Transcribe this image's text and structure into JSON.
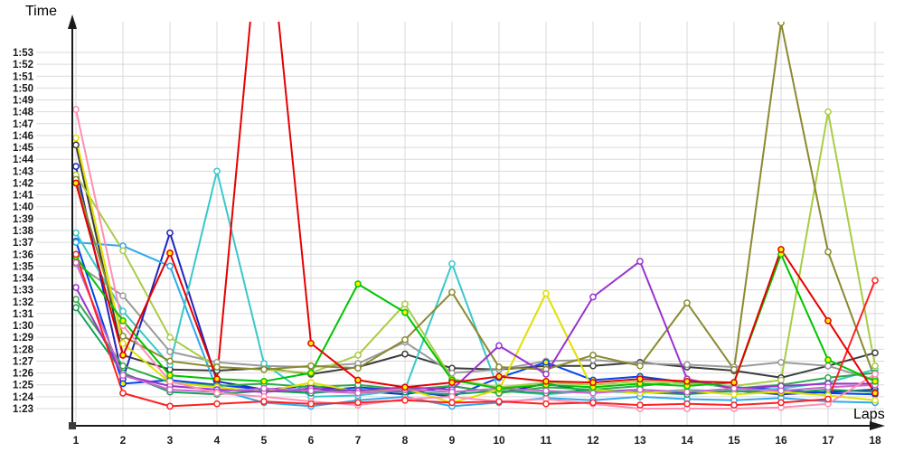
{
  "chart": {
    "y_axis_title": "Time",
    "x_axis_title": "Laps",
    "grid_color": "#d9d9d9",
    "axis_color": "#1a1a1a",
    "tick_label_color": "#1b1b1b"
  },
  "chart_data": {
    "type": "line",
    "title": "",
    "xlabel": "Laps",
    "ylabel": "Time",
    "x": [
      1,
      2,
      3,
      4,
      5,
      6,
      7,
      8,
      9,
      10,
      11,
      12,
      13,
      14,
      15,
      16,
      17,
      18
    ],
    "x_tick_labels": [
      "1",
      "2",
      "3",
      "4",
      "5",
      "6",
      "7",
      "8",
      "9",
      "10",
      "11",
      "12",
      "13",
      "14",
      "15",
      "16",
      "17",
      "18"
    ],
    "y_tick_labels": [
      "1:53",
      "1:52",
      "1:51",
      "1:50",
      "1:49",
      "1:48",
      "1:47",
      "1:46",
      "1:45",
      "1:44",
      "1:43",
      "1:42",
      "1:41",
      "1:40",
      "1:39",
      "1:38",
      "1:37",
      "1:36",
      "1:35",
      "1:34",
      "1:33",
      "1:32",
      "1:31",
      "1:30",
      "1:29",
      "1:28",
      "1:27",
      "1:26",
      "1:25",
      "1:24",
      "1:23"
    ],
    "y_axis_seconds_range": [
      83,
      113
    ],
    "grid": true,
    "legend_position": "none",
    "units": "minutes:seconds per lap, values stored as total seconds",
    "series": [
      {
        "name": "black",
        "color": "#3c3c3c",
        "marker_fill": "#ffffff",
        "values": [
          105.2,
          87.5,
          86.3,
          86.2,
          86.4,
          85.9,
          86.5,
          87.6,
          86.4,
          86.3,
          86.6,
          86.6,
          86.9,
          86.5,
          86.2,
          85.6,
          86.6,
          87.7
        ]
      },
      {
        "name": "gray",
        "color": "#9a9a9a",
        "marker_fill": "#ffffff",
        "values": [
          95.2,
          92.5,
          87.8,
          86.9,
          86.6,
          86.5,
          86.8,
          88.6,
          86.0,
          86.3,
          87.0,
          87.1,
          86.8,
          86.7,
          86.5,
          86.9,
          86.6,
          85.4
        ]
      },
      {
        "name": "navy-blue",
        "color": "#2222bb",
        "marker_fill": "#ffffff",
        "values": [
          103.4,
          85.5,
          97.8,
          85.3,
          84.6,
          84.9,
          84.5,
          84.2,
          84.9,
          84.3,
          85.1,
          84.4,
          84.6,
          84.3,
          84.5,
          84.2,
          84.4,
          84.6
        ]
      },
      {
        "name": "blue",
        "color": "#0044ee",
        "marker_fill": "#ffee00",
        "values": [
          97.1,
          85.1,
          85.4,
          85.0,
          84.6,
          84.4,
          84.8,
          84.5,
          84.0,
          85.6,
          86.9,
          85.4,
          85.7,
          85.2,
          84.8,
          84.6,
          84.3,
          84.2
        ]
      },
      {
        "name": "sky-blue",
        "color": "#30a8f0",
        "marker_fill": "#ffffff",
        "values": [
          97.0,
          96.7,
          95.0,
          84.6,
          83.5,
          83.2,
          83.7,
          84.0,
          83.2,
          83.5,
          83.9,
          83.7,
          84.0,
          83.8,
          83.7,
          83.9,
          83.6,
          83.5
        ]
      },
      {
        "name": "cyan",
        "color": "#38c8c8",
        "marker_fill": "#ffffff",
        "values": [
          97.8,
          91.2,
          86.7,
          103.0,
          86.8,
          84.0,
          84.1,
          84.6,
          95.2,
          84.5,
          84.2,
          84.5,
          84.3,
          84.6,
          84.4,
          84.7,
          85.2,
          86.3
        ]
      },
      {
        "name": "sea-green",
        "color": "#18a05a",
        "marker_fill": "#ffffff",
        "values": [
          91.5,
          86.0,
          84.4,
          84.2,
          84.5,
          84.3,
          84.6,
          84.4,
          84.2,
          84.5,
          84.3,
          84.6,
          84.4,
          84.2,
          84.5,
          84.3,
          84.6,
          84.4
        ]
      },
      {
        "name": "medium-green",
        "color": "#2faa4a",
        "marker_fill": "#ffffff",
        "values": [
          92.2,
          86.6,
          85.2,
          84.9,
          85.1,
          84.8,
          85.0,
          84.6,
          84.9,
          84.3,
          84.8,
          84.6,
          84.9,
          85.3,
          84.7,
          85.0,
          85.6,
          86.0
        ]
      },
      {
        "name": "light-green",
        "color": "#a8cc44",
        "marker_fill": "#ffffff",
        "values": [
          102.7,
          96.3,
          89.0,
          86.5,
          86.3,
          86.0,
          87.5,
          91.8,
          85.5,
          84.8,
          85.2,
          85.0,
          85.3,
          85.1,
          84.9,
          85.4,
          108.0,
          86.6
        ]
      },
      {
        "name": "olive",
        "color": "#8a8a30",
        "marker_fill": "#ffffff",
        "values": [
          102.3,
          89.1,
          87.0,
          86.5,
          86.3,
          86.6,
          86.4,
          88.8,
          92.8,
          86.5,
          86.3,
          87.5,
          86.6,
          91.9,
          86.3,
          115.5,
          96.2,
          85.5
        ]
      },
      {
        "name": "yellow",
        "color": "#e0e000",
        "marker_fill": "#ffffff",
        "values": [
          105.8,
          88.5,
          85.2,
          84.8,
          84.4,
          85.2,
          84.4,
          84.7,
          83.5,
          84.6,
          92.7,
          84.6,
          84.3,
          84.5,
          84.2,
          84.4,
          84.1,
          83.7
        ]
      },
      {
        "name": "purple",
        "color": "#9933cc",
        "marker_fill": "#ffffff",
        "values": [
          93.2,
          85.8,
          84.9,
          84.6,
          84.4,
          84.7,
          84.5,
          84.8,
          84.6,
          88.3,
          85.9,
          92.4,
          95.4,
          85.5,
          84.7,
          84.9,
          85.1,
          85.1
        ]
      },
      {
        "name": "orchid",
        "color": "#cc66cc",
        "marker_fill": "#ffffff",
        "values": [
          95.3,
          85.8,
          84.6,
          84.4,
          84.7,
          84.5,
          84.3,
          84.6,
          84.4,
          84.7,
          84.5,
          84.3,
          84.6,
          84.4,
          84.7,
          84.5,
          84.8,
          85.0
        ]
      },
      {
        "name": "pink",
        "color": "#ff8fb4",
        "marker_fill": "#ffffff",
        "values": [
          108.2,
          90.0,
          85.3,
          84.3,
          84.0,
          83.6,
          83.3,
          83.8,
          84.0,
          83.6,
          83.8,
          83.4,
          83.0,
          83.0,
          83.0,
          83.1,
          83.4,
          85.9
        ]
      },
      {
        "name": "bright-green",
        "color": "#00c400",
        "marker_fill": "#ffee00",
        "values": [
          95.8,
          90.4,
          85.8,
          85.5,
          85.3,
          86.0,
          93.5,
          91.1,
          85.4,
          84.7,
          85.0,
          84.8,
          85.1,
          84.9,
          85.2,
          96.0,
          87.1,
          85.3
        ]
      },
      {
        "name": "scarlet",
        "color": "#ff2020",
        "marker_fill": "#ffffff",
        "values": [
          96.0,
          84.3,
          83.2,
          83.4,
          83.6,
          83.4,
          83.5,
          83.7,
          83.5,
          83.6,
          83.4,
          83.5,
          83.3,
          83.4,
          83.3,
          83.5,
          83.8,
          93.8
        ]
      },
      {
        "name": "red",
        "color": "#e60000",
        "marker_fill": "#ffee00",
        "values": [
          102.0,
          87.5,
          96.1,
          85.5,
          128.0,
          88.5,
          85.4,
          84.8,
          85.2,
          85.7,
          85.3,
          85.2,
          85.5,
          85.3,
          85.2,
          96.4,
          90.4,
          84.3
        ]
      }
    ]
  }
}
